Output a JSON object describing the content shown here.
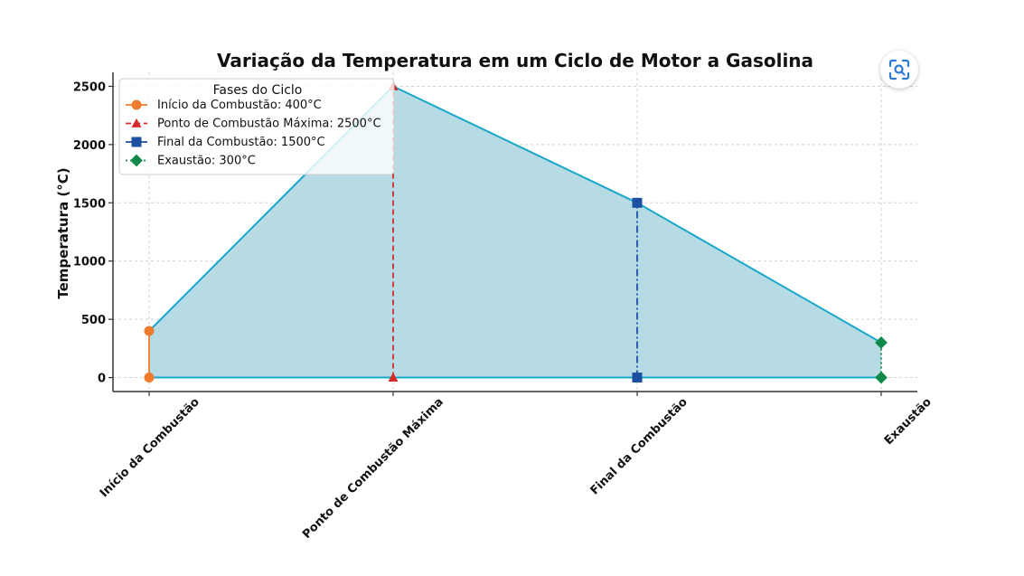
{
  "colors": {
    "fill": "#b7dbe5",
    "outline": "#1aa8c8",
    "inicio": "#ef7b2c",
    "maxima": "#d42a2a",
    "final": "#1c4fa0",
    "exaustao": "#108a48",
    "grid": "#d0d0d0",
    "axis": "#333333",
    "lens_icon": "#2a7ad6"
  },
  "lens_button": {
    "icon": "lens-search-icon"
  },
  "chart_data": {
    "type": "area",
    "title": "Variação da Temperatura em um Ciclo de Motor a Gasolina",
    "xlabel": "",
    "ylabel": "Temperatura (°C)",
    "categories": [
      "Início da Combustão",
      "Ponto de Combustão Máxima",
      "Final da Combustão",
      "Exaustão"
    ],
    "values": [
      400,
      2500,
      1500,
      300
    ],
    "ylim": [
      -120,
      2620
    ],
    "yticks": [
      0,
      500,
      1000,
      1500,
      2000,
      2500
    ],
    "grid": true,
    "markers": [
      {
        "category": "Início da Combustão",
        "value": 400,
        "marker": "circle",
        "line": "solid",
        "color": "#ef7b2c"
      },
      {
        "category": "Ponto de Combustão Máxima",
        "value": 2500,
        "marker": "triangle",
        "line": "dashed",
        "color": "#d42a2a"
      },
      {
        "category": "Final da Combustão",
        "value": 1500,
        "marker": "square",
        "line": "dashdot",
        "color": "#1c4fa0"
      },
      {
        "category": "Exaustão",
        "value": 300,
        "marker": "diamond",
        "line": "dotted",
        "color": "#108a48"
      }
    ],
    "legend": {
      "title": "Fases do Ciclo",
      "placement": "top-left",
      "entries": [
        "Início da Combustão: 400°C",
        "Ponto de Combustão Máxima: 2500°C",
        "Final da Combustão: 1500°C",
        "Exaustão: 300°C"
      ]
    }
  }
}
